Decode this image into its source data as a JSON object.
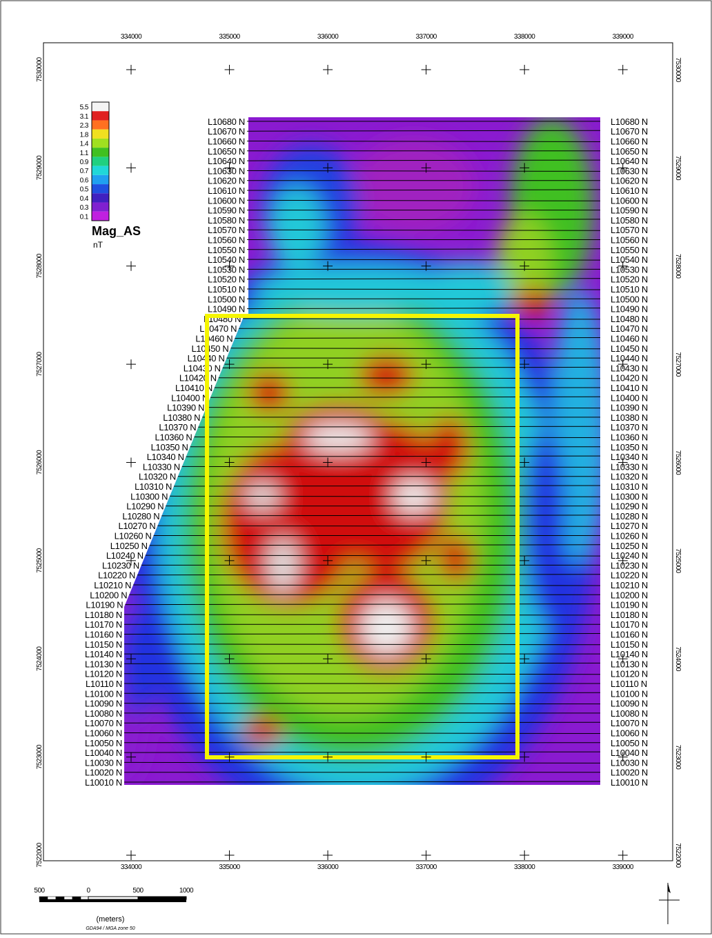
{
  "map": {
    "x_ticks": [
      334000,
      335000,
      336000,
      337000,
      338000,
      339000
    ],
    "y_ticks": [
      7530000,
      7529000,
      7528000,
      7527000,
      7526000,
      7525000,
      7524000,
      7523000,
      7522000
    ],
    "lines": [
      "L10010 N",
      "L10020 N",
      "L10030 N",
      "L10040 N",
      "L10050 N",
      "L10060 N",
      "L10070 N",
      "L10080 N",
      "L10090 N",
      "L10100 N",
      "L10110 N",
      "L10120 N",
      "L10130 N",
      "L10140 N",
      "L10150 N",
      "L10160 N",
      "L10170 N",
      "L10180 N",
      "L10190 N",
      "L10200 N",
      "L10210 N",
      "L10220 N",
      "L10230 N",
      "L10240 N",
      "L10250 N",
      "L10260 N",
      "L10270 N",
      "L10280 N",
      "L10290 N",
      "L10300 N",
      "L10310 N",
      "L10320 N",
      "L10330 N",
      "L10340 N",
      "L10350 N",
      "L10360 N",
      "L10370 N",
      "L10380 N",
      "L10390 N",
      "L10400 N",
      "L10410 N",
      "L10420 N",
      "L10430 N",
      "L10440 N",
      "L10450 N",
      "L10460 N",
      "L10470 N",
      "L10480 N",
      "L10490 N",
      "L10500 N",
      "L10510 N",
      "L10520 N",
      "L10530 N",
      "L10540 N",
      "L10550 N",
      "L10560 N",
      "L10570 N",
      "L10580 N",
      "L10590 N",
      "L10600 N",
      "L10610 N",
      "L10620 N",
      "L10630 N",
      "L10640 N",
      "L10650 N",
      "L10660 N",
      "L10670 N",
      "L10680 N"
    ],
    "legend": {
      "title": "Mag_AS",
      "unit": "nT",
      "labels": [
        5.5,
        3.1,
        2.3,
        1.8,
        1.4,
        1.1,
        0.9,
        0.7,
        0.6,
        0.5,
        0.4,
        0.3,
        0.1
      ],
      "colors": [
        "#f4f4f4",
        "#e02020",
        "#ff7020",
        "#f0e020",
        "#a0e020",
        "#40c020",
        "#20d080",
        "#20d8d8",
        "#20a0f0",
        "#2050e0",
        "#4020c0",
        "#8020d0",
        "#c020e0"
      ]
    },
    "scale_bar": {
      "labels": [
        500,
        0,
        500,
        1000
      ],
      "unit": "(meters)",
      "projection": "GDA94 / MGA zone 50"
    }
  }
}
